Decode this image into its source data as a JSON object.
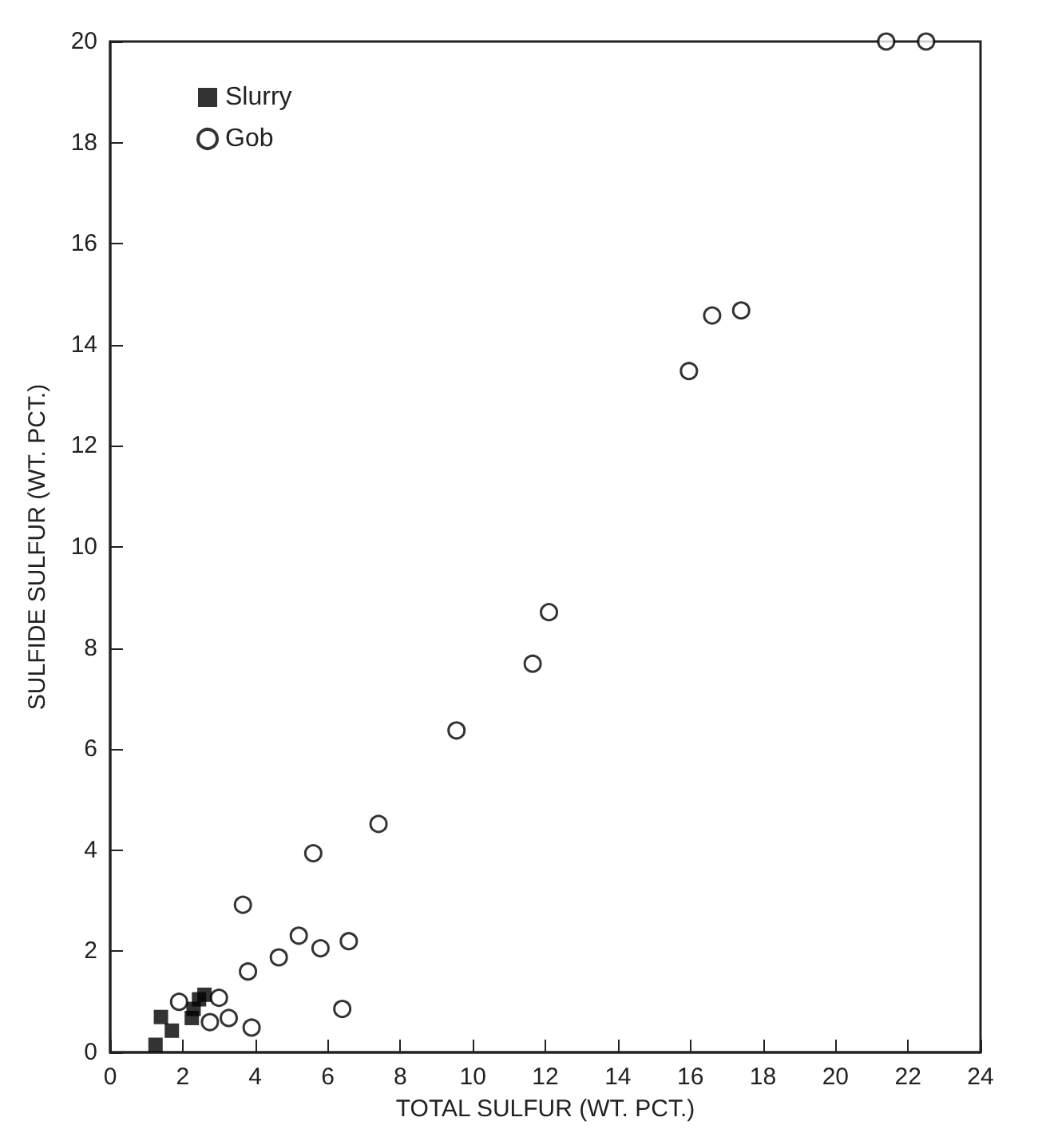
{
  "chart_data": {
    "type": "scatter",
    "xlabel": "TOTAL SULFUR (WT. PCT.)",
    "ylabel": "SULFIDE SULFUR (WT. PCT.)",
    "xlim": [
      0,
      24
    ],
    "xticks": [
      0,
      2,
      4,
      6,
      8,
      10,
      12,
      14,
      16,
      18,
      20,
      22,
      24
    ],
    "ylim": [
      0,
      20
    ],
    "yticks": [
      0,
      2,
      4,
      6,
      8,
      10,
      12,
      14,
      16,
      18,
      20
    ],
    "grid": false,
    "legend": "top left",
    "series": [
      {
        "name": "Slurry",
        "color": "#000000",
        "marker": "square",
        "x": [
          1.25,
          1.4,
          1.7,
          2.25,
          2.3,
          2.45,
          2.6
        ],
        "values": [
          0.15,
          0.7,
          0.43,
          0.68,
          0.86,
          1.05,
          1.14
        ]
      },
      {
        "name": "Gob",
        "color": "#000000",
        "marker": "circle",
        "x": [
          1.9,
          2.75,
          3.0,
          3.27,
          3.9,
          6.4,
          3.8,
          3.66,
          4.65,
          5.2,
          5.8,
          6.58,
          5.6,
          7.4,
          9.55,
          11.65,
          12.1,
          15.96,
          16.6,
          17.4,
          21.4,
          22.5
        ],
        "values": [
          1.0,
          0.6,
          1.08,
          0.68,
          0.49,
          0.86,
          1.6,
          2.92,
          1.88,
          2.31,
          2.06,
          2.2,
          3.94,
          4.52,
          6.37,
          7.69,
          8.71,
          13.48,
          14.58,
          14.68,
          20.0,
          20.0
        ]
      }
    ]
  }
}
